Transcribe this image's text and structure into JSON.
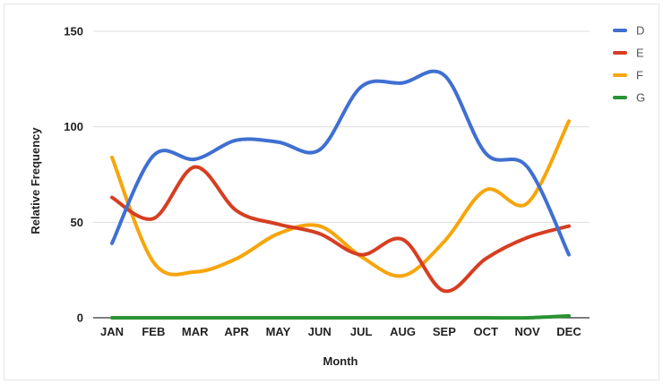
{
  "chart_data": {
    "type": "line",
    "title": "",
    "xlabel": "Month",
    "ylabel": "Relative Frequency",
    "categories": [
      "JAN",
      "FEB",
      "MAR",
      "APR",
      "MAY",
      "JUN",
      "JUL",
      "AUG",
      "SEP",
      "OCT",
      "NOV",
      "DEC"
    ],
    "ylim": [
      0,
      150
    ],
    "yticks": [
      0,
      50,
      100,
      150
    ],
    "grid": true,
    "legend_position": "right",
    "smooth": true,
    "series": [
      {
        "name": "D",
        "color": "#3f6fd1",
        "values": [
          39,
          85,
          83,
          93,
          92,
          88,
          121,
          123,
          127,
          86,
          79,
          33
        ]
      },
      {
        "name": "E",
        "color": "#d63e21",
        "values": [
          63,
          52,
          79,
          56,
          49,
          44,
          33,
          41,
          14,
          31,
          42,
          48
        ]
      },
      {
        "name": "F",
        "color": "#f7a50b",
        "values": [
          84,
          29,
          24,
          31,
          44,
          48,
          32,
          22,
          40,
          67,
          60,
          103
        ]
      },
      {
        "name": "G",
        "color": "#2a9333",
        "values": [
          0,
          0,
          0,
          0,
          0,
          0,
          0,
          0,
          0,
          0,
          0,
          1
        ]
      }
    ]
  }
}
